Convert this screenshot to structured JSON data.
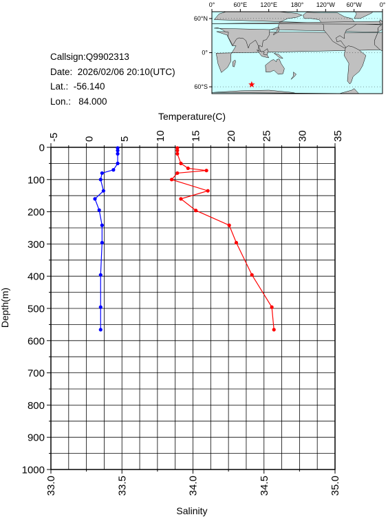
{
  "info": {
    "callsign": "Callsign:Q9902313",
    "date": "Date:  2026/02/06 20:10(UTC)",
    "lat": "Lat.:  -56.140",
    "lon": "Lon.:   84.000"
  },
  "map": {
    "lon_labels": [
      "0°",
      "60°E",
      "120°E",
      "180°",
      "120°W",
      "60°W",
      "0°"
    ],
    "lat_labels": [
      "60°N",
      "0°",
      "60°S"
    ],
    "station": {
      "lat": -56.14,
      "lon": 84.0
    },
    "colors": {
      "ocean": "#ccffff",
      "land": "#c0c0c0",
      "station": "#ff0000"
    }
  },
  "chart_data": {
    "type": "line",
    "title": "",
    "temperature_axis": {
      "label": "Temperature(C)",
      "range": [
        -5,
        35
      ],
      "ticks": [
        "-5",
        "0",
        "5",
        "10",
        "15",
        "20",
        "25",
        "30",
        "35"
      ]
    },
    "salinity_axis": {
      "label": "Salinity",
      "range": [
        33.0,
        35.0
      ],
      "ticks": [
        "33.0",
        "33.5",
        "34.0",
        "34.5",
        "35.0"
      ]
    },
    "depth_axis": {
      "label": "Depth(m)",
      "range": [
        0,
        1000
      ],
      "ticks": [
        "0",
        "100",
        "200",
        "300",
        "400",
        "500",
        "600",
        "700",
        "800",
        "900",
        "1000"
      ]
    },
    "grid": true,
    "series": [
      {
        "quantity": "salinity",
        "color": "#0000ff",
        "points": [
          {
            "value": 33.47,
            "depth": 2
          },
          {
            "value": 33.47,
            "depth": 10
          },
          {
            "value": 33.47,
            "depth": 20
          },
          {
            "value": 33.47,
            "depth": 50
          },
          {
            "value": 33.44,
            "depth": 70
          },
          {
            "value": 33.36,
            "depth": 80
          },
          {
            "value": 33.35,
            "depth": 100
          },
          {
            "value": 33.37,
            "depth": 135
          },
          {
            "value": 33.31,
            "depth": 160
          },
          {
            "value": 33.34,
            "depth": 195
          },
          {
            "value": 33.36,
            "depth": 242
          },
          {
            "value": 33.36,
            "depth": 296
          },
          {
            "value": 33.35,
            "depth": 396
          },
          {
            "value": 33.35,
            "depth": 496
          },
          {
            "value": 33.35,
            "depth": 566
          }
        ]
      },
      {
        "quantity": "temperature",
        "color": "#ff0000",
        "points": [
          {
            "value": 12.8,
            "depth": 2
          },
          {
            "value": 12.8,
            "depth": 10
          },
          {
            "value": 12.8,
            "depth": 20
          },
          {
            "value": 13.3,
            "depth": 50
          },
          {
            "value": 14.3,
            "depth": 65
          },
          {
            "value": 16.9,
            "depth": 72
          },
          {
            "value": 12.8,
            "depth": 80
          },
          {
            "value": 12.0,
            "depth": 100
          },
          {
            "value": 17.1,
            "depth": 135
          },
          {
            "value": 13.3,
            "depth": 160
          },
          {
            "value": 15.4,
            "depth": 196
          },
          {
            "value": 20.1,
            "depth": 242
          },
          {
            "value": 21.1,
            "depth": 296
          },
          {
            "value": 23.3,
            "depth": 396
          },
          {
            "value": 26.1,
            "depth": 496
          },
          {
            "value": 26.4,
            "depth": 566
          }
        ]
      }
    ]
  }
}
